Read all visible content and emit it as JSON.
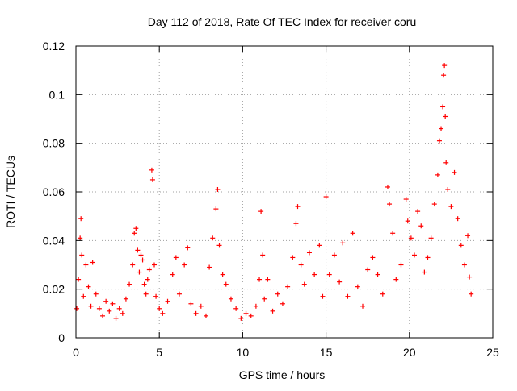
{
  "chart_data": {
    "type": "scatter",
    "title": "Day 112 of 2018, Rate Of TEC Index for receiver coru",
    "xlabel": "GPS time / hours",
    "ylabel": "ROTI / TECUs",
    "xlim": [
      0,
      25
    ],
    "ylim": [
      0,
      0.12
    ],
    "x_ticks": [
      0,
      5,
      10,
      15,
      20,
      25
    ],
    "x_tick_labels": [
      "0",
      "5",
      "10",
      "15",
      "20",
      "25"
    ],
    "y_ticks": [
      0,
      0.02,
      0.04,
      0.06,
      0.08,
      0.1,
      0.12
    ],
    "y_tick_labels": [
      "0",
      "0.02",
      "0.04",
      "0.06",
      "0.08",
      "0.1",
      "0.12"
    ],
    "grid": true,
    "marker": "+",
    "series": [
      {
        "name": "ROTI",
        "color": "#ff0000",
        "points": [
          [
            0.05,
            0.012
          ],
          [
            0.15,
            0.024
          ],
          [
            0.25,
            0.041
          ],
          [
            0.3,
            0.049
          ],
          [
            0.35,
            0.034
          ],
          [
            0.45,
            0.017
          ],
          [
            0.6,
            0.03
          ],
          [
            0.75,
            0.021
          ],
          [
            0.9,
            0.013
          ],
          [
            1.0,
            0.031
          ],
          [
            1.2,
            0.018
          ],
          [
            1.4,
            0.012
          ],
          [
            1.6,
            0.009
          ],
          [
            1.8,
            0.015
          ],
          [
            2.0,
            0.011
          ],
          [
            2.2,
            0.014
          ],
          [
            2.4,
            0.008
          ],
          [
            2.6,
            0.012
          ],
          [
            2.8,
            0.01
          ],
          [
            3.0,
            0.016
          ],
          [
            3.2,
            0.022
          ],
          [
            3.4,
            0.03
          ],
          [
            3.5,
            0.043
          ],
          [
            3.6,
            0.045
          ],
          [
            3.7,
            0.036
          ],
          [
            3.8,
            0.027
          ],
          [
            3.9,
            0.034
          ],
          [
            4.0,
            0.032
          ],
          [
            4.1,
            0.022
          ],
          [
            4.2,
            0.018
          ],
          [
            4.3,
            0.024
          ],
          [
            4.4,
            0.028
          ],
          [
            4.55,
            0.069
          ],
          [
            4.6,
            0.065
          ],
          [
            4.7,
            0.03
          ],
          [
            4.8,
            0.017
          ],
          [
            5.0,
            0.012
          ],
          [
            5.2,
            0.01
          ],
          [
            5.5,
            0.015
          ],
          [
            5.8,
            0.026
          ],
          [
            6.0,
            0.033
          ],
          [
            6.2,
            0.018
          ],
          [
            6.5,
            0.03
          ],
          [
            6.7,
            0.037
          ],
          [
            6.9,
            0.014
          ],
          [
            7.2,
            0.01
          ],
          [
            7.5,
            0.013
          ],
          [
            7.8,
            0.009
          ],
          [
            8.0,
            0.029
          ],
          [
            8.2,
            0.041
          ],
          [
            8.4,
            0.053
          ],
          [
            8.5,
            0.061
          ],
          [
            8.6,
            0.038
          ],
          [
            8.8,
            0.026
          ],
          [
            9.0,
            0.022
          ],
          [
            9.3,
            0.016
          ],
          [
            9.6,
            0.012
          ],
          [
            9.9,
            0.008
          ],
          [
            10.2,
            0.01
          ],
          [
            10.5,
            0.009
          ],
          [
            10.8,
            0.013
          ],
          [
            11.0,
            0.024
          ],
          [
            11.1,
            0.052
          ],
          [
            11.2,
            0.034
          ],
          [
            11.3,
            0.016
          ],
          [
            11.5,
            0.024
          ],
          [
            11.8,
            0.011
          ],
          [
            12.1,
            0.018
          ],
          [
            12.4,
            0.014
          ],
          [
            12.7,
            0.021
          ],
          [
            13.0,
            0.033
          ],
          [
            13.2,
            0.047
          ],
          [
            13.3,
            0.054
          ],
          [
            13.5,
            0.03
          ],
          [
            13.7,
            0.022
          ],
          [
            14.0,
            0.035
          ],
          [
            14.3,
            0.026
          ],
          [
            14.6,
            0.038
          ],
          [
            14.8,
            0.017
          ],
          [
            15.0,
            0.058
          ],
          [
            15.2,
            0.026
          ],
          [
            15.5,
            0.034
          ],
          [
            15.8,
            0.023
          ],
          [
            16.0,
            0.039
          ],
          [
            16.3,
            0.017
          ],
          [
            16.6,
            0.043
          ],
          [
            16.9,
            0.021
          ],
          [
            17.2,
            0.013
          ],
          [
            17.5,
            0.028
          ],
          [
            17.8,
            0.033
          ],
          [
            18.1,
            0.026
          ],
          [
            18.4,
            0.018
          ],
          [
            18.7,
            0.062
          ],
          [
            18.8,
            0.055
          ],
          [
            19.0,
            0.043
          ],
          [
            19.2,
            0.024
          ],
          [
            19.5,
            0.03
          ],
          [
            19.8,
            0.057
          ],
          [
            19.9,
            0.048
          ],
          [
            20.1,
            0.041
          ],
          [
            20.3,
            0.034
          ],
          [
            20.5,
            0.052
          ],
          [
            20.7,
            0.046
          ],
          [
            20.9,
            0.027
          ],
          [
            21.1,
            0.033
          ],
          [
            21.3,
            0.041
          ],
          [
            21.5,
            0.055
          ],
          [
            21.7,
            0.067
          ],
          [
            21.8,
            0.081
          ],
          [
            21.9,
            0.086
          ],
          [
            22.0,
            0.095
          ],
          [
            22.05,
            0.108
          ],
          [
            22.1,
            0.112
          ],
          [
            22.15,
            0.091
          ],
          [
            22.2,
            0.072
          ],
          [
            22.3,
            0.061
          ],
          [
            22.5,
            0.054
          ],
          [
            22.7,
            0.068
          ],
          [
            22.9,
            0.049
          ],
          [
            23.1,
            0.038
          ],
          [
            23.3,
            0.03
          ],
          [
            23.5,
            0.042
          ],
          [
            23.6,
            0.025
          ],
          [
            23.7,
            0.018
          ]
        ]
      }
    ]
  }
}
